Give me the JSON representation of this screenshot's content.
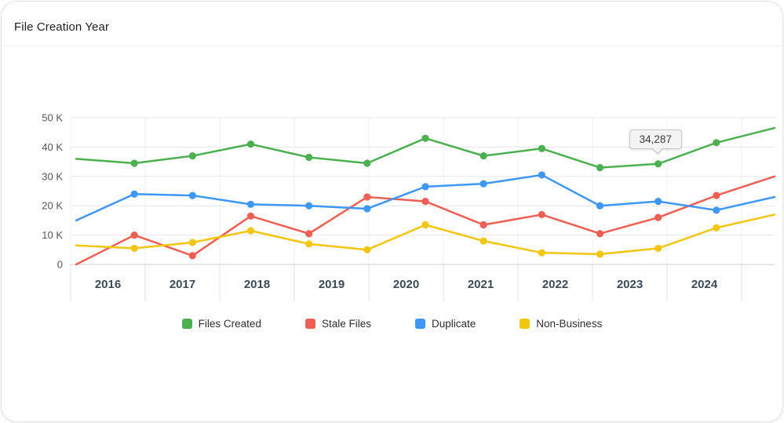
{
  "header": {
    "title": "File Creation Year"
  },
  "chart_data": {
    "type": "line",
    "title": "File Creation Year",
    "grid": true,
    "legend_position": "bottom",
    "x_axis": {
      "years": [
        "2016",
        "2017",
        "2018",
        "2019",
        "2020",
        "2021",
        "2022",
        "2023",
        "2024"
      ]
    },
    "y_axis": {
      "min": 0,
      "max": 50000,
      "step": 10000,
      "tick_labels": [
        "0",
        "10 K",
        "20 K",
        "30 K",
        "40 K",
        "50 K"
      ]
    },
    "series": [
      {
        "name": "Files Created",
        "color": "#4caf50",
        "values": [
          36000,
          34500,
          37000,
          41000,
          36500,
          34500,
          43000,
          37000,
          39500,
          33000,
          34287,
          41500,
          46500
        ]
      },
      {
        "name": "Stale Files",
        "color": "#ec5f52",
        "values": [
          0,
          10000,
          3000,
          16500,
          10500,
          23000,
          21500,
          13500,
          17000,
          10500,
          16000,
          23500,
          30000
        ]
      },
      {
        "name": "Duplicate",
        "color": "#3e97f4",
        "values": [
          15000,
          24000,
          23500,
          20500,
          20000,
          19000,
          26500,
          27500,
          30500,
          20000,
          21500,
          18500,
          23000
        ]
      },
      {
        "name": "Non-Business",
        "color": "#f2c511",
        "values": [
          6500,
          5500,
          7500,
          11500,
          7000,
          5000,
          13500,
          8000,
          4000,
          3500,
          5500,
          12500,
          17000
        ]
      }
    ],
    "tooltip": {
      "text": "34,287",
      "series": "Files Created",
      "point_index": 10
    }
  },
  "colors": {
    "grid_horizontal": "#e7e7e7",
    "grid_vertical": "#efefef",
    "axis_line": "#cfcfcf",
    "band_separator": "#e0e0e0",
    "y_label": "#555555",
    "x_label": "#3c4a57"
  }
}
